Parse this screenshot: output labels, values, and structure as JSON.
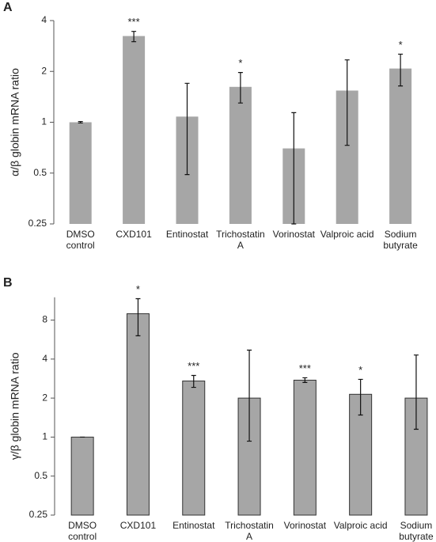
{
  "chart_data": [
    {
      "type": "bar",
      "panel_label": "A",
      "ylabel": "α/β globin mRNA ratio",
      "categories": [
        [
          "DMSO",
          "control"
        ],
        [
          "CXD101"
        ],
        [
          "Entinostat"
        ],
        [
          "Trichostatin",
          "A"
        ],
        [
          "Vorinostat"
        ],
        [
          "Valproic acid"
        ],
        [
          "Sodium",
          "butyrate"
        ]
      ],
      "values": [
        1.0,
        3.24,
        1.08,
        1.62,
        0.7,
        1.54,
        2.08
      ],
      "error_lower": [
        0.99,
        3.0,
        0.49,
        1.3,
        0.25,
        0.73,
        1.64
      ],
      "error_upper": [
        1.01,
        3.45,
        1.7,
        1.97,
        1.14,
        2.34,
        2.53
      ],
      "annotations": [
        null,
        "***",
        null,
        "*",
        null,
        null,
        "*"
      ],
      "ylim": [
        0.25,
        4
      ],
      "yticks": [
        0.25,
        0.5,
        1,
        2,
        4
      ],
      "log_base": 2,
      "color": "#a6a6a6",
      "bar_edge": false
    },
    {
      "type": "bar",
      "panel_label": "B",
      "ylabel": "γ/β globin mRNA ratio",
      "categories": [
        [
          "DMSO",
          "control"
        ],
        [
          "CXD101"
        ],
        [
          "Entinostat"
        ],
        [
          "Trichostatin",
          "A"
        ],
        [
          "Vorinostat"
        ],
        [
          "Valproic acid"
        ],
        [
          "Sodium",
          "butyrate"
        ]
      ],
      "values": [
        1.0,
        8.96,
        2.71,
        2.0,
        2.75,
        2.14,
        2.0
      ],
      "error_lower": [
        1.0,
        6.05,
        2.42,
        0.93,
        2.64,
        1.48,
        1.15
      ],
      "error_upper": [
        1.0,
        11.7,
        2.99,
        4.69,
        2.87,
        2.79,
        4.3
      ],
      "annotations": [
        null,
        "*",
        "***",
        null,
        "***",
        "*",
        null
      ],
      "ylim": [
        0.25,
        12
      ],
      "yticks": [
        0.25,
        0.5,
        1,
        2,
        4,
        8
      ],
      "log_base": 2,
      "color": "#a6a6a6",
      "bar_edge": true
    }
  ]
}
